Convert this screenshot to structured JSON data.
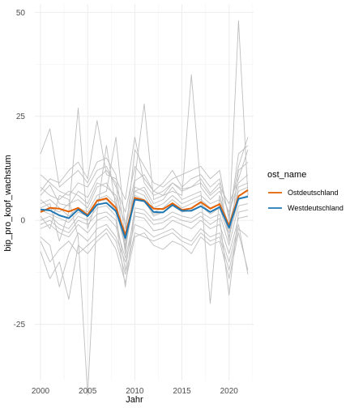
{
  "chart_data": {
    "type": "line",
    "xlabel": "Jahr",
    "ylabel": "bip_pro_kopf_wachstum",
    "xlim": [
      1999.4,
      2022.6
    ],
    "ylim": [
      -38.5,
      52
    ],
    "xticks": [
      2000,
      2005,
      2010,
      2015,
      2020
    ],
    "yticks": [
      -25,
      0,
      25,
      50
    ],
    "grid": true,
    "legend": {
      "title": "ost_name",
      "position": "right"
    },
    "x": [
      2000,
      2001,
      2002,
      2003,
      2004,
      2005,
      2006,
      2007,
      2008,
      2009,
      2010,
      2011,
      2012,
      2013,
      2014,
      2015,
      2016,
      2017,
      2018,
      2019,
      2020,
      2021,
      2022
    ],
    "series": [
      {
        "name": "Ostdeutschland",
        "color": "#E66100",
        "values": [
          2.0,
          3.0,
          2.8,
          2.1,
          3.0,
          1.3,
          4.7,
          5.3,
          3.0,
          -3.5,
          5.4,
          4.8,
          2.8,
          2.7,
          4.1,
          2.5,
          2.9,
          4.4,
          2.8,
          3.9,
          -1.3,
          5.8,
          7.3
        ]
      },
      {
        "name": "Westdeutschland",
        "color": "#1F78B4",
        "values": [
          2.6,
          2.4,
          1.2,
          0.5,
          2.6,
          1.0,
          3.8,
          4.2,
          2.2,
          -4.3,
          5.0,
          4.6,
          2.0,
          1.9,
          3.7,
          2.3,
          2.3,
          3.4,
          2.0,
          3.2,
          -1.8,
          5.2,
          5.7
        ]
      }
    ],
    "background_series_color": "#bebebe",
    "background_series": [
      [
        6.0,
        8.5,
        4.0,
        3.5,
        7.0,
        5.5,
        10.0,
        12.0,
        9.0,
        -8.0,
        9.5,
        11.0,
        7.0,
        6.0,
        9.0,
        7.5,
        8.0,
        10.0,
        6.5,
        9.0,
        -5.0,
        12.0,
        14.0
      ],
      [
        -2.0,
        -1.0,
        -3.0,
        -4.0,
        -1.0,
        -3.0,
        0.0,
        1.0,
        -1.5,
        -9.0,
        1.0,
        0.5,
        -2.5,
        -2.0,
        0.0,
        -1.0,
        -2.0,
        0.0,
        -2.0,
        -1.0,
        -8.0,
        0.5,
        1.0
      ],
      [
        16.0,
        22.0,
        8.0,
        10.0,
        12.0,
        9.0,
        14.0,
        15.0,
        11.0,
        -4.0,
        17.0,
        13.0,
        9.0,
        8.0,
        10.0,
        11.0,
        12.0,
        13.0,
        10.0,
        12.0,
        0.0,
        16.0,
        18.0
      ],
      [
        -7.5,
        -14.0,
        -10.0,
        -19.0,
        -6.0,
        -8.0,
        -5.0,
        -3.0,
        -7.0,
        -15.0,
        -4.0,
        -3.0,
        -6.0,
        -7.0,
        -5.0,
        -6.0,
        -8.0,
        -4.0,
        -6.0,
        -5.0,
        -14.0,
        -3.0,
        -12.0
      ],
      [
        3.0,
        4.0,
        -5.0,
        2.0,
        27.0,
        -2.0,
        5.0,
        6.0,
        4.0,
        -6.0,
        7.0,
        6.0,
        2.0,
        3.0,
        5.0,
        3.0,
        4.0,
        5.0,
        3.0,
        4.0,
        -3.0,
        7.0,
        8.0
      ],
      [
        1.0,
        -2.0,
        6.0,
        5.0,
        -4.0,
        -42.0,
        2.0,
        18.0,
        3.0,
        -5.0,
        6.0,
        5.0,
        1.0,
        2.0,
        4.0,
        2.0,
        3.0,
        4.0,
        2.0,
        3.0,
        -2.0,
        6.0,
        7.0
      ],
      [
        4.0,
        5.0,
        3.0,
        1.0,
        3.0,
        2.0,
        6.0,
        7.0,
        20.0,
        -2.0,
        8.0,
        7.0,
        3.0,
        4.0,
        6.0,
        4.0,
        5.0,
        6.0,
        4.0,
        5.0,
        -1.0,
        8.0,
        9.0
      ],
      [
        0.0,
        1.0,
        -1.0,
        -2.0,
        1.0,
        0.0,
        3.0,
        3.5,
        1.0,
        -12.0,
        3.0,
        2.5,
        0.0,
        0.5,
        2.0,
        1.0,
        0.5,
        2.0,
        0.5,
        1.5,
        -6.0,
        3.5,
        4.0
      ],
      [
        8.0,
        6.0,
        5.0,
        7.0,
        6.0,
        4.0,
        9.0,
        8.0,
        6.0,
        -1.0,
        10.0,
        28.0,
        5.0,
        6.0,
        7.0,
        6.0,
        35.0,
        8.0,
        5.0,
        7.0,
        2.0,
        9.0,
        11.0
      ],
      [
        -4.0,
        -6.0,
        -16.0,
        -8.0,
        -3.0,
        -5.0,
        -2.0,
        -1.0,
        -4.0,
        -10.0,
        -1.0,
        -2.0,
        -4.0,
        -3.0,
        -2.0,
        -4.0,
        -5.0,
        -2.0,
        -4.0,
        -3.0,
        -10.0,
        -1.0,
        -13.0
      ],
      [
        5.0,
        3.0,
        2.0,
        4.0,
        5.0,
        3.0,
        8.0,
        9.0,
        5.0,
        -7.0,
        7.0,
        8.0,
        4.0,
        5.0,
        8.0,
        5.0,
        6.0,
        7.0,
        -20.0,
        6.0,
        -2.0,
        48.0,
        6.0
      ],
      [
        2.5,
        1.5,
        0.5,
        -0.5,
        2.0,
        1.0,
        4.5,
        5.0,
        2.5,
        -6.5,
        5.5,
        4.5,
        1.5,
        2.0,
        3.5,
        2.0,
        2.5,
        3.5,
        1.5,
        3.0,
        -4.0,
        5.0,
        6.0
      ],
      [
        11.0,
        9.0,
        7.0,
        6.0,
        9.0,
        8.0,
        12.0,
        13.0,
        8.0,
        2.0,
        13.0,
        10.0,
        7.0,
        9.0,
        12.0,
        8.0,
        10.0,
        11.0,
        8.0,
        10.0,
        1.0,
        13.0,
        20.0
      ],
      [
        -1.0,
        0.0,
        -2.0,
        -3.0,
        0.0,
        -1.0,
        1.5,
        2.0,
        0.0,
        -16.0,
        2.0,
        1.5,
        -1.0,
        -0.5,
        1.0,
        0.0,
        -0.5,
        1.0,
        -1.0,
        0.5,
        -18.0,
        2.0,
        2.5
      ],
      [
        7.0,
        10.0,
        9.0,
        12.0,
        14.0,
        10.0,
        24.0,
        11.0,
        10.0,
        5.0,
        20.0,
        9.0,
        6.0,
        7.0,
        9.0,
        7.0,
        8.0,
        9.0,
        6.0,
        8.0,
        4.0,
        10.0,
        17.0
      ],
      [
        -5.0,
        -10.0,
        -7.0,
        -5.0,
        -8.0,
        -6.0,
        -4.0,
        -2.0,
        -5.0,
        -13.0,
        -3.0,
        -4.0,
        -5.0,
        -4.0,
        -3.0,
        -5.0,
        -6.0,
        -3.0,
        -5.0,
        -4.0,
        -12.0,
        -2.0,
        -4.0
      ]
    ]
  }
}
